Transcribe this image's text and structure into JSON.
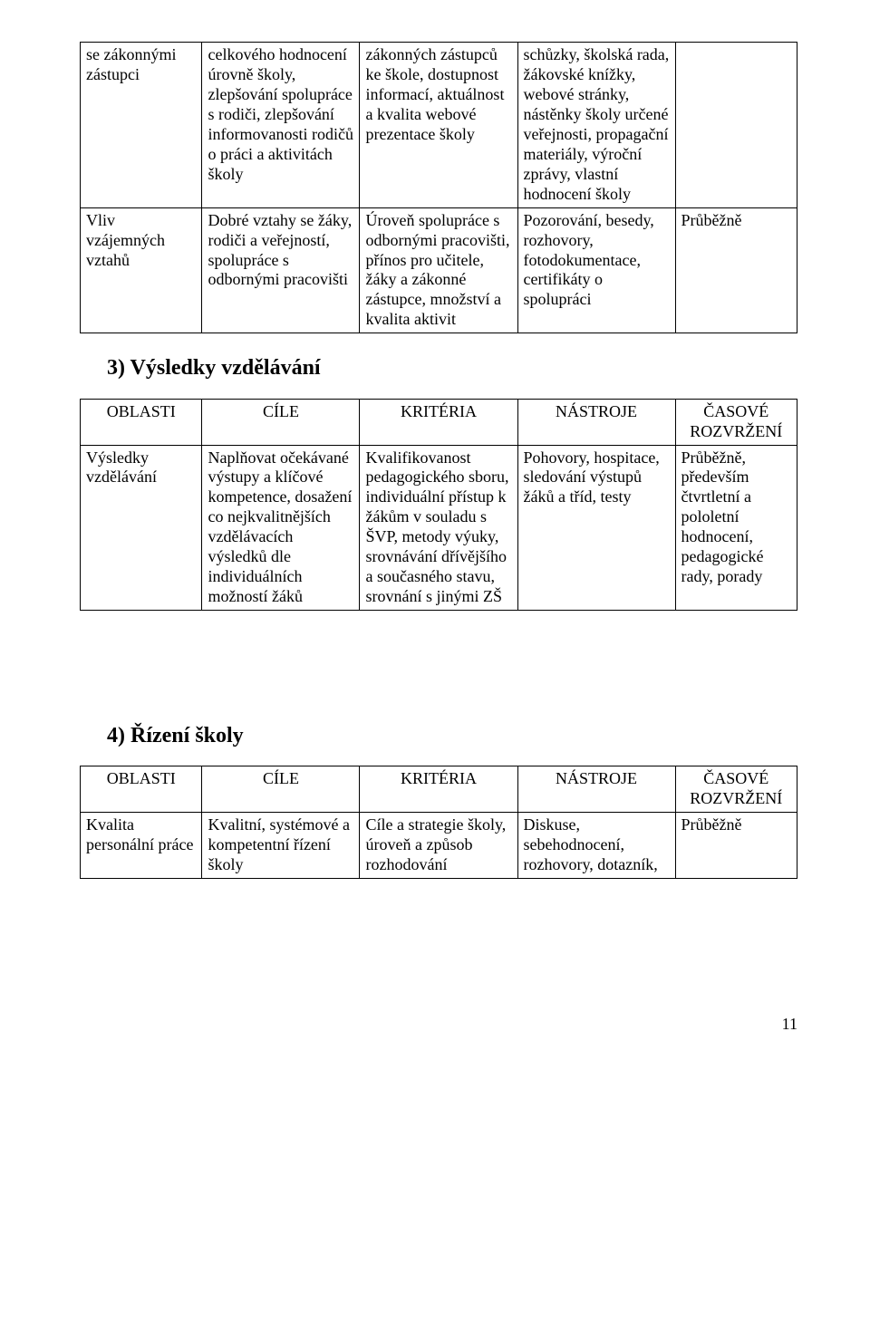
{
  "table1": {
    "rows": [
      [
        "se zákonnými zástupci",
        "celkového hodnocení úrovně školy, zlepšování spolupráce s rodiči, zlepšování informovanosti rodičů o práci a aktivitách školy",
        "zákonných zástupců ke škole, dostupnost informací, aktuálnost a kvalita webové prezentace školy",
        "schůzky, školská rada, žákovské knížky, webové stránky, nástěnky školy určené veřejnosti, propagační materiály, výroční zprávy, vlastní hodnocení školy",
        ""
      ],
      [
        "Vliv vzájemných vztahů",
        "Dobré vztahy se žáky, rodiči a veřejností, spolupráce s odbornými pracovišti",
        "Úroveň spolupráce s odbornými pracovišti, přínos pro učitele, žáky a zákonné zástupce, množství a kvalita aktivit",
        "Pozorování, besedy, rozhovory, fotodokumentace, certifikáty o spolupráci",
        "Průběžně"
      ]
    ]
  },
  "heading3": "3) Výsledky vzdělávání",
  "table2": {
    "headers": [
      "OBLASTI",
      "CÍLE",
      "KRITÉRIA",
      "NÁSTROJE",
      "ČASOVÉ ROZVRŽENÍ"
    ],
    "rows": [
      [
        "Výsledky vzdělávání",
        "Naplňovat očekávané výstupy a klíčové kompetence, dosažení co nejkvalitnějších vzdělávacích výsledků dle individuálních možností žáků",
        "Kvalifikovanost pedagogického sboru, individuální přístup k žákům v souladu s ŠVP, metody výuky, srovnávání dřívějšího a současného stavu, srovnání s jinými ZŠ",
        "Pohovory, hospitace, sledování výstupů žáků a tříd, testy",
        "Průběžně, především čtvrtletní a pololetní hodnocení, pedagogické rady, porady"
      ]
    ]
  },
  "heading4": "4) Řízení školy",
  "table3": {
    "headers": [
      "OBLASTI",
      "CÍLE",
      "KRITÉRIA",
      "NÁSTROJE",
      "ČASOVÉ ROZVRŽENÍ"
    ],
    "rows": [
      [
        "Kvalita personální práce",
        "Kvalitní, systémové a kompetentní řízení školy",
        "Cíle a strategie školy, úroveň a způsob rozhodování",
        "Diskuse, sebehodnocení, rozhovory, dotazník,",
        "Průběžně"
      ]
    ]
  },
  "page_number": "11"
}
